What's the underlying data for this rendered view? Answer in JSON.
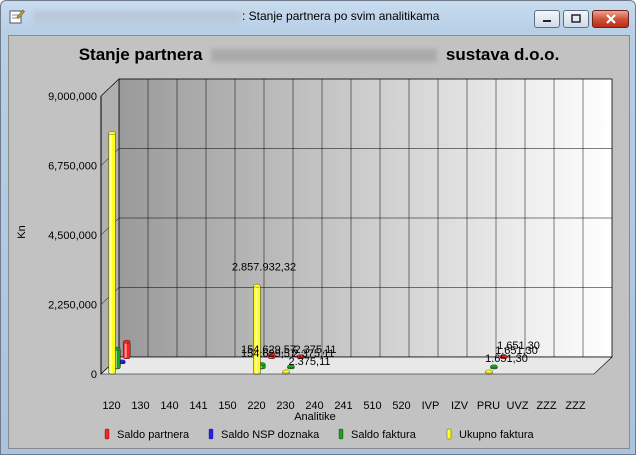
{
  "window": {
    "title_suffix": ": Stanje partnera po svim analitikama",
    "minimize_label": "–",
    "maximize_label": "□",
    "close_label": "✕"
  },
  "chart_title_left": "Stanje partnera",
  "chart_title_right": "sustava d.o.o.",
  "chart_data": {
    "type": "bar",
    "ylabel": "Kn",
    "xlabel": "Analitike",
    "ylim": [
      0,
      9000000
    ],
    "y_ticks": [
      "0",
      "2,250,000",
      "4,500,000",
      "6,750,000",
      "9,000,000"
    ],
    "categories": [
      "120",
      "130",
      "140",
      "141",
      "150",
      "220",
      "230",
      "240",
      "241",
      "510",
      "520",
      "IVP",
      "IZV",
      "PRU",
      "UVZ",
      "ZZZ",
      "ZZZ"
    ],
    "series": [
      {
        "name": "Saldo partnera",
        "color": "#ff2020",
        "values": [
          550000,
          0,
          0,
          0,
          0,
          154629.57,
          2375.11,
          0,
          0,
          0,
          0,
          0,
          0,
          1651.3,
          0,
          0,
          0
        ]
      },
      {
        "name": "Saldo NSP doznaka",
        "color": "#2020ff",
        "values": [
          80000,
          0,
          0,
          0,
          0,
          0,
          0,
          0,
          0,
          0,
          0,
          0,
          0,
          0,
          0,
          0,
          0
        ]
      },
      {
        "name": "Saldo faktura",
        "color": "#20a020",
        "values": [
          650000,
          0,
          0,
          0,
          0,
          154629.57,
          2375.11,
          0,
          0,
          0,
          0,
          0,
          0,
          1651.3,
          0,
          0,
          0
        ]
      },
      {
        "name": "Ukupno faktura",
        "color": "#ffff20",
        "values": [
          7800000,
          0,
          0,
          0,
          0,
          2857932.32,
          2375.11,
          0,
          0,
          0,
          0,
          0,
          0,
          1651.3,
          0,
          0,
          0
        ]
      }
    ],
    "data_labels": [
      {
        "text": "2.857.932,32",
        "category": "220",
        "value": 2857932.32
      },
      {
        "text": "154.629,57",
        "category": "220",
        "value": 154629.57
      },
      {
        "text": "154.629,57",
        "category": "220",
        "value": 154629.57
      },
      {
        "text": "2.375,11",
        "category": "230",
        "value": 2375.11
      },
      {
        "text": "2.375,11",
        "category": "230",
        "value": 2375.11
      },
      {
        "text": "2.375,11",
        "category": "230",
        "value": 2375.11
      },
      {
        "text": "1.651,30",
        "category": "PRU",
        "value": 1651.3
      },
      {
        "text": "1.651,30",
        "category": "PRU",
        "value": 1651.3
      },
      {
        "text": "1.651,30",
        "category": "PRU",
        "value": 1651.3
      }
    ],
    "grid": true,
    "legend_placement": "bottom"
  }
}
